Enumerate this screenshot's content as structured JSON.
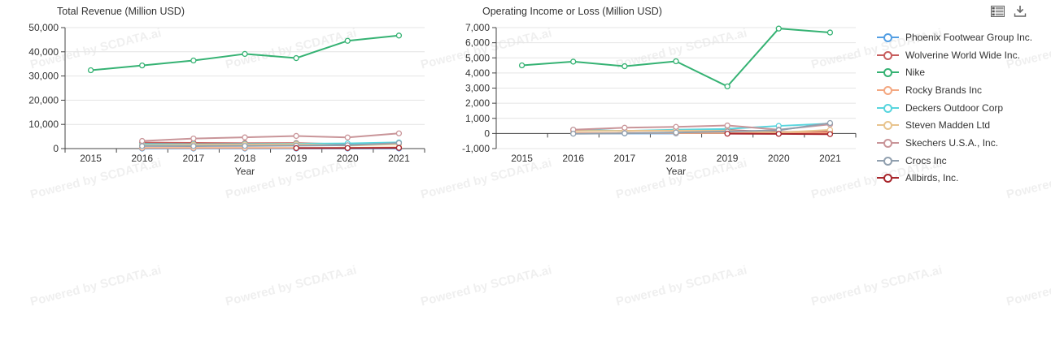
{
  "watermark": {
    "text": "Powered by SCDATA.ai"
  },
  "toolbar": {
    "icons": [
      "data-view-icon",
      "download-icon"
    ]
  },
  "colors": {
    "axis": "#444444",
    "grid": "#e4e4e4",
    "title_text": "#333333",
    "tick_text": "#333333",
    "icon": "#666666"
  },
  "chart_data": [
    {
      "type": "line",
      "title": "Total Revenue (Million USD)",
      "xlabel": "Year",
      "categories": [
        "2015",
        "2016",
        "2017",
        "2018",
        "2019",
        "2020",
        "2021"
      ],
      "ylim": [
        0,
        50000
      ],
      "yticks": [
        0,
        10000,
        20000,
        30000,
        40000,
        50000
      ],
      "grid": true,
      "legend_position": "right",
      "series": [
        {
          "name": "Phoenix Footwear Group Inc.",
          "color": "#549FE3",
          "values": [
            null,
            20,
            21,
            22,
            24,
            26,
            28
          ]
        },
        {
          "name": "Wolverine World Wide Inc.",
          "color": "#C75D5D",
          "values": [
            null,
            2495,
            2350,
            2239,
            2274,
            1791,
            2415
          ]
        },
        {
          "name": "Nike",
          "color": "#35B273",
          "values": [
            32376,
            34350,
            36397,
            39117,
            37403,
            44538,
            46710
          ]
        },
        {
          "name": "Rocky Brands Inc",
          "color": "#F4A881",
          "values": [
            null,
            260,
            253,
            253,
            270,
            277,
            514
          ]
        },
        {
          "name": "Deckers Outdoor Corp",
          "color": "#58D5DE",
          "values": [
            null,
            1875,
            1790,
            1903,
            2020,
            2133,
            2546
          ]
        },
        {
          "name": "Steven Madden Ltd",
          "color": "#E8C48E",
          "values": [
            null,
            1405,
            1546,
            1655,
            1787,
            1202,
            1866
          ]
        },
        {
          "name": "Skechers U.S.A., Inc.",
          "color": "#C99599",
          "values": [
            null,
            3159,
            4164,
            4642,
            5220,
            4597,
            6285
          ]
        },
        {
          "name": "Crocs Inc",
          "color": "#91A0AF",
          "values": [
            null,
            1036,
            1024,
            1088,
            1231,
            1386,
            2313
          ]
        },
        {
          "name": "Allbirds, Inc.",
          "color": "#A8262C",
          "values": [
            null,
            null,
            null,
            null,
            194,
            219,
            277
          ]
        }
      ]
    },
    {
      "type": "line",
      "title": "Operating Income or Loss (Million USD)",
      "xlabel": "Year",
      "categories": [
        "2015",
        "2016",
        "2017",
        "2018",
        "2019",
        "2020",
        "2021"
      ],
      "ylim": [
        -1000,
        7000
      ],
      "yticks": [
        -1000,
        0,
        1000,
        2000,
        3000,
        4000,
        5000,
        6000,
        7000
      ],
      "grid": true,
      "legend_position": "right",
      "series": [
        {
          "name": "Phoenix Footwear Group Inc.",
          "color": "#549FE3",
          "values": [
            null,
            2,
            2,
            3,
            null,
            null,
            null
          ]
        },
        {
          "name": "Wolverine World Wide Inc.",
          "color": "#C75D5D",
          "values": [
            null,
            230,
            170,
            190,
            230,
            92,
            142
          ]
        },
        {
          "name": "Nike",
          "color": "#35B273",
          "values": [
            4502,
            4749,
            4445,
            4772,
            3115,
            6937,
            6675
          ]
        },
        {
          "name": "Rocky Brands Inc",
          "color": "#F4A881",
          "values": [
            null,
            25,
            24,
            28,
            32,
            30,
            50
          ]
        },
        {
          "name": "Deckers Outdoor Corp",
          "color": "#58D5DE",
          "values": [
            null,
            246,
            170,
            250,
            300,
            500,
            650
          ]
        },
        {
          "name": "Steven Madden Ltd",
          "color": "#E8C48E",
          "values": [
            null,
            170,
            178,
            190,
            178,
            60,
            240
          ]
        },
        {
          "name": "Skechers U.S.A., Inc.",
          "color": "#C99599",
          "values": [
            null,
            250,
            380,
            435,
            528,
            250,
            600
          ]
        },
        {
          "name": "Crocs Inc",
          "color": "#91A0AF",
          "values": [
            null,
            -17,
            10,
            62,
            130,
            215,
            690
          ]
        },
        {
          "name": "Allbirds, Inc.",
          "color": "#A8262C",
          "values": [
            null,
            null,
            null,
            null,
            -15,
            -26,
            -45
          ]
        }
      ]
    }
  ]
}
